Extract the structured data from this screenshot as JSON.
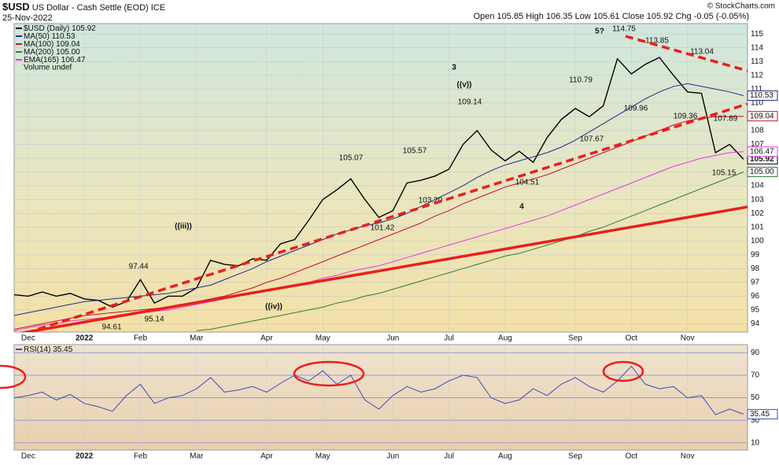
{
  "header": {
    "symbol": "$USD",
    "name": "US Dollar - Cash Settle (EOD) ICE",
    "date": "25-Nov-2022",
    "quote": "Open 105.85  High 106.35  Low 105.61  Close 105.92  Chg -0.05 (-0.05%)",
    "credit": "© StockCharts.com"
  },
  "chart_data": [
    {
      "type": "line",
      "categories": [
        null,
        "Dec",
        null,
        null,
        null,
        "2022",
        null,
        null,
        null,
        "Feb",
        null,
        null,
        null,
        "Mar",
        null,
        null,
        null,
        null,
        "Apr",
        null,
        null,
        null,
        "May",
        null,
        null,
        null,
        null,
        "Jun",
        null,
        null,
        null,
        "Jul",
        null,
        null,
        null,
        "Aug",
        null,
        null,
        null,
        null,
        "Sep",
        null,
        null,
        null,
        "Oct",
        null,
        null,
        null,
        "Nov",
        null,
        null,
        null,
        null
      ],
      "series": [
        {
          "name": "$USD (Daily)",
          "last_label": "105.92",
          "color": "#000000",
          "values": [
            96.1,
            96.0,
            96.3,
            96.0,
            96.2,
            95.8,
            95.7,
            95.2,
            95.6,
            97.2,
            95.5,
            96.0,
            96.0,
            96.6,
            98.6,
            98.3,
            98.2,
            98.7,
            98.6,
            99.8,
            100.1,
            101.5,
            103.0,
            103.7,
            104.5,
            103.0,
            101.7,
            102.2,
            104.2,
            104.4,
            104.7,
            105.2,
            107.0,
            108.0,
            106.6,
            105.8,
            106.5,
            105.7,
            107.5,
            108.8,
            109.6,
            109.0,
            109.8,
            113.2,
            112.1,
            112.8,
            113.3,
            112.0,
            110.8,
            110.7,
            106.4,
            107.0,
            105.92
          ]
        },
        {
          "name": "MA(50)",
          "last_label": "110.53",
          "color": "#1f2a8c",
          "values": [
            94.6,
            94.8,
            95.0,
            95.2,
            95.4,
            95.6,
            95.7,
            95.8,
            95.9,
            96.0,
            96.1,
            96.2,
            96.4,
            96.6,
            96.8,
            97.2,
            97.6,
            98.0,
            98.5,
            98.9,
            99.3,
            99.7,
            100.1,
            100.5,
            100.8,
            101.1,
            101.3,
            101.6,
            102.0,
            102.5,
            103.0,
            103.5,
            104.0,
            104.6,
            105.1,
            105.5,
            105.8,
            106.1,
            106.4,
            106.8,
            107.3,
            107.9,
            108.5,
            109.1,
            109.7,
            110.3,
            110.8,
            111.2,
            111.4,
            111.2,
            111.0,
            110.8,
            110.53
          ]
        },
        {
          "name": "MA(100)",
          "last_label": "109.04",
          "color": "#c8102e",
          "values": [
            93.6,
            93.8,
            94.0,
            94.2,
            94.4,
            94.6,
            94.7,
            94.8,
            94.9,
            95.0,
            95.1,
            95.2,
            95.4,
            95.6,
            95.8,
            96.0,
            96.3,
            96.6,
            97.0,
            97.3,
            97.7,
            98.1,
            98.5,
            98.9,
            99.3,
            99.7,
            100.1,
            100.5,
            100.9,
            101.3,
            101.8,
            102.2,
            102.7,
            103.1,
            103.5,
            103.9,
            104.2,
            104.5,
            104.8,
            105.2,
            105.6,
            106.0,
            106.4,
            106.8,
            107.2,
            107.6,
            108.0,
            108.4,
            108.7,
            108.9,
            109.0,
            109.0,
            109.04
          ]
        },
        {
          "name": "MA(200)",
          "last_label": "105.00",
          "color": "#2e7d32",
          "values": [
            null,
            null,
            null,
            null,
            null,
            null,
            null,
            null,
            null,
            null,
            null,
            null,
            null,
            93.5,
            93.6,
            93.8,
            94.0,
            94.2,
            94.4,
            94.6,
            94.8,
            95.0,
            95.2,
            95.5,
            95.7,
            96.0,
            96.2,
            96.5,
            96.8,
            97.1,
            97.4,
            97.7,
            98.0,
            98.3,
            98.6,
            98.9,
            99.1,
            99.4,
            99.7,
            100.0,
            100.3,
            100.7,
            101.0,
            101.4,
            101.8,
            102.2,
            102.6,
            103.0,
            103.4,
            103.8,
            104.2,
            104.6,
            105.0
          ]
        },
        {
          "name": "EMA(165)",
          "last_label": "106.47",
          "color": "#e03ce0",
          "values": [
            93.5,
            93.7,
            93.9,
            94.0,
            94.2,
            94.3,
            94.4,
            94.5,
            94.6,
            94.8,
            94.9,
            95.0,
            95.2,
            95.4,
            95.6,
            95.8,
            96.0,
            96.2,
            96.4,
            96.6,
            96.8,
            97.0,
            97.3,
            97.5,
            97.8,
            98.0,
            98.2,
            98.5,
            98.8,
            99.1,
            99.4,
            99.7,
            100.0,
            100.3,
            100.6,
            100.9,
            101.2,
            101.5,
            101.8,
            102.2,
            102.6,
            103.0,
            103.4,
            103.8,
            104.2,
            104.6,
            105.0,
            105.4,
            105.7,
            106.0,
            106.2,
            106.4,
            106.47
          ]
        }
      ],
      "legend_extra": "Volume undef",
      "ylim": [
        93.4,
        115.75
      ],
      "yticks": [
        94,
        95,
        96,
        97,
        98,
        99,
        100,
        101,
        102,
        103,
        104,
        105,
        106,
        107,
        108,
        109,
        110,
        111,
        112,
        113,
        114,
        115
      ],
      "grid": true,
      "annotations": [
        "5?",
        "3",
        "((v))",
        "4",
        "((iii))",
        "((iv))",
        "114.75",
        "113.85",
        "113.04",
        "110.79",
        "109.96",
        "109.36",
        "107.89",
        "109.14",
        "107.67",
        "105.57",
        "105.07",
        "104.51",
        "103.20",
        "105.15",
        "101.42",
        "97.44",
        "95.14",
        "94.61"
      ]
    },
    {
      "type": "line",
      "categories": [
        null,
        "Dec",
        null,
        null,
        null,
        "2022",
        null,
        null,
        null,
        "Feb",
        null,
        null,
        null,
        "Mar",
        null,
        null,
        null,
        null,
        "Apr",
        null,
        null,
        null,
        "May",
        null,
        null,
        null,
        null,
        "Jun",
        null,
        null,
        null,
        "Jul",
        null,
        null,
        null,
        "Aug",
        null,
        null,
        null,
        null,
        "Sep",
        null,
        null,
        null,
        "Oct",
        null,
        null,
        null,
        "Nov",
        null,
        null,
        null,
        null
      ],
      "series": [
        {
          "name": "RSI(14)",
          "last_label": "35.45",
          "color": "#3a4bbf",
          "values": [
            50,
            52,
            55,
            48,
            53,
            45,
            42,
            38,
            52,
            62,
            45,
            50,
            52,
            58,
            68,
            55,
            57,
            60,
            55,
            63,
            70,
            65,
            74,
            62,
            70,
            48,
            40,
            52,
            60,
            55,
            58,
            65,
            70,
            68,
            50,
            45,
            48,
            58,
            52,
            62,
            68,
            60,
            55,
            65,
            78,
            62,
            58,
            60,
            50,
            52,
            35,
            40,
            35.45
          ]
        }
      ],
      "ylim": [
        3.6,
        97.2
      ],
      "yticks": [
        10,
        30,
        50,
        70,
        90
      ],
      "grid": true
    }
  ]
}
